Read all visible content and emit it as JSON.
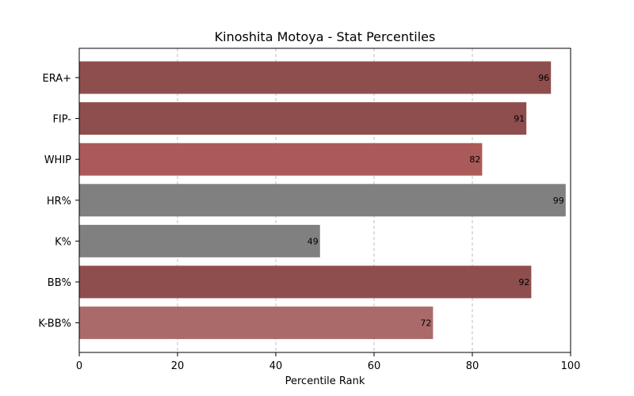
{
  "chart_data": {
    "type": "bar",
    "orientation": "horizontal",
    "title": "Kinoshita Motoya - Stat Percentiles",
    "xlabel": "Percentile Rank",
    "ylabel": "",
    "xlim": [
      0,
      100
    ],
    "xticks": [
      0,
      20,
      40,
      60,
      80,
      100
    ],
    "grid": "vertical dashed",
    "categories": [
      "ERA+",
      "FIP-",
      "WHIP",
      "HR%",
      "K%",
      "BB%",
      "K-BB%"
    ],
    "values": [
      96,
      91,
      82,
      99,
      49,
      92,
      72
    ],
    "colors": [
      "#8f4e4e",
      "#8f4e4e",
      "#ab5a5a",
      "#808080",
      "#808080",
      "#8f4e4e",
      "#ab6a6a"
    ]
  }
}
